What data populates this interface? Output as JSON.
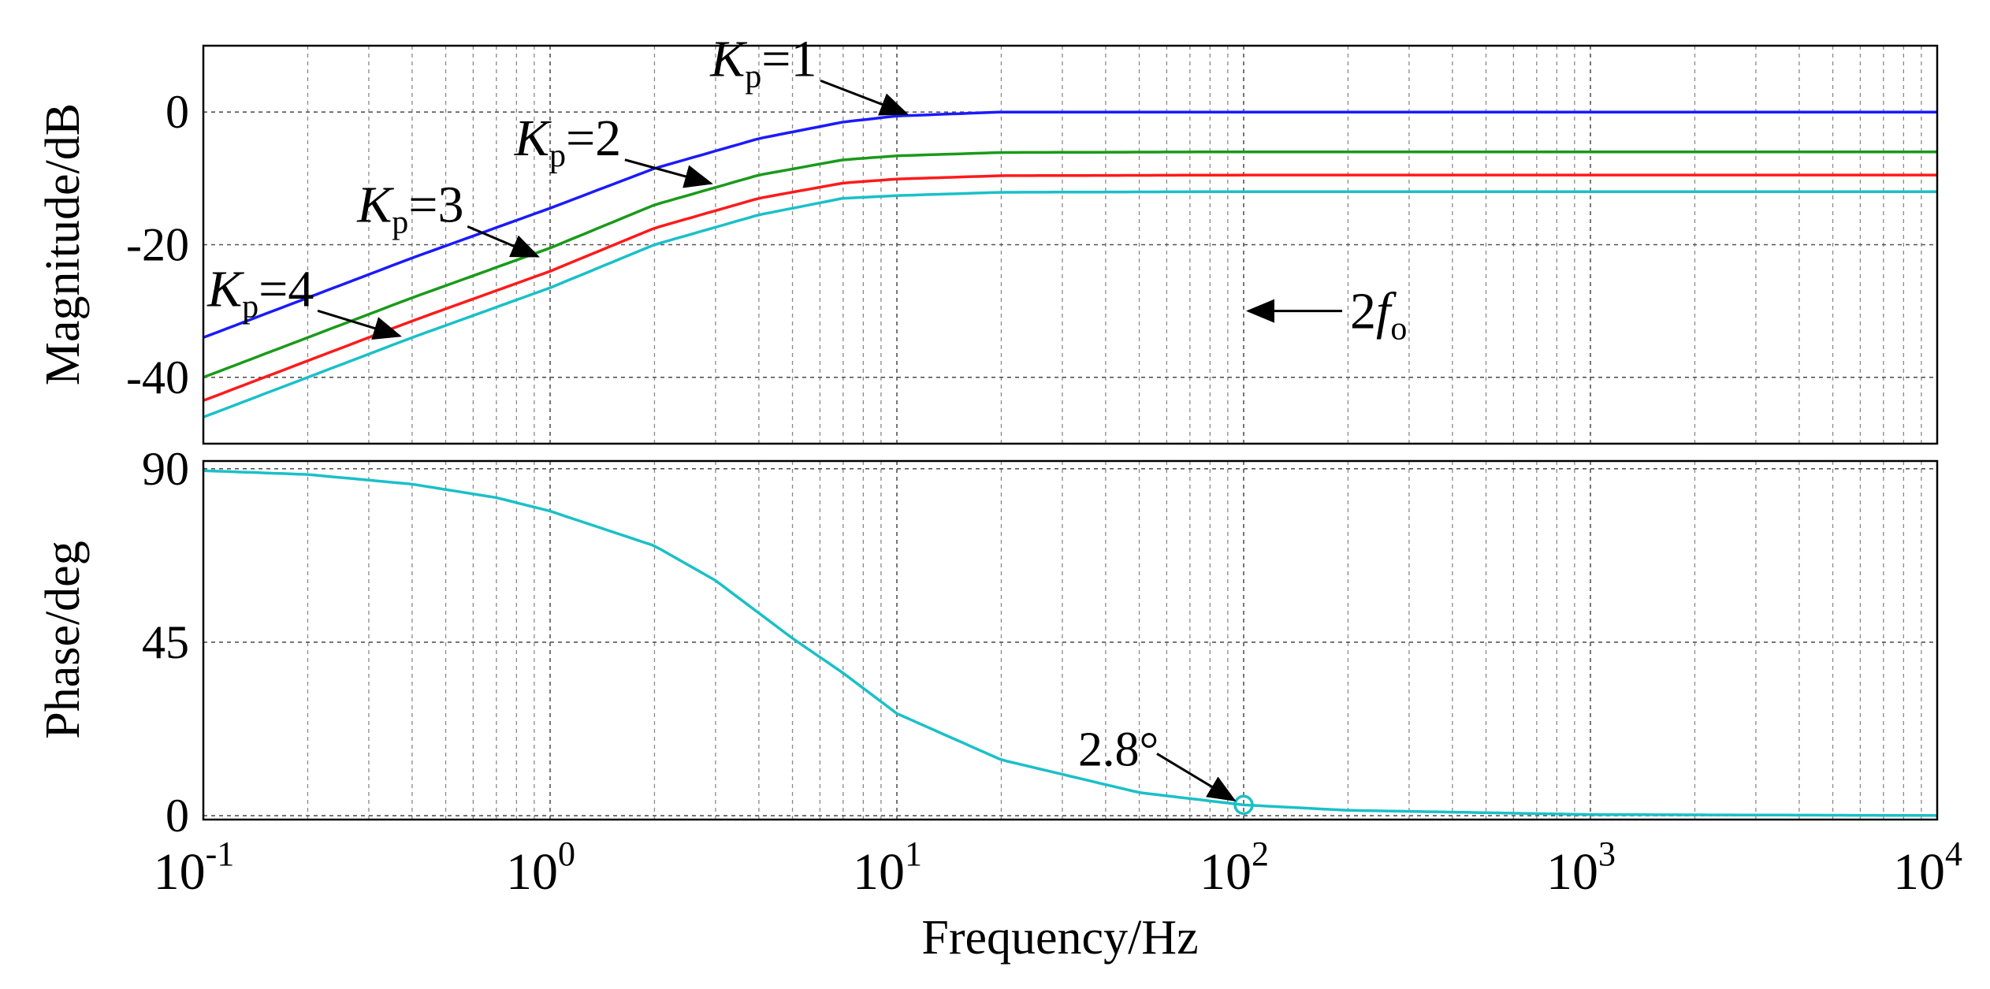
{
  "chart_data": {
    "type": "line",
    "xscale": "log",
    "xlabel": "Frequency/Hz",
    "xlim": [
      0.1,
      10000
    ],
    "xticks": [
      {
        "base": "10",
        "exp": "-1"
      },
      {
        "base": "10",
        "exp": "0"
      },
      {
        "base": "10",
        "exp": "1"
      },
      {
        "base": "10",
        "exp": "2"
      },
      {
        "base": "10",
        "exp": "3"
      },
      {
        "base": "10",
        "exp": "4"
      }
    ],
    "magnitude": {
      "ylabel": "Magnitude/dB",
      "ylim": [
        -50,
        10
      ],
      "yticks": [
        0,
        -20,
        -40
      ],
      "series": [
        {
          "name": "Kp=1",
          "color": "#1a1aff",
          "x": [
            0.1,
            0.2,
            0.4,
            1,
            2,
            4,
            7,
            10,
            20,
            100,
            1000,
            10000
          ],
          "values": [
            -34,
            -28,
            -22,
            -14.5,
            -8.5,
            -4,
            -1.5,
            -0.6,
            0,
            0,
            0,
            0
          ]
        },
        {
          "name": "Kp=2",
          "color": "#1a9a1a",
          "x": [
            0.1,
            0.2,
            0.4,
            1,
            2,
            4,
            7,
            10,
            20,
            100,
            1000,
            10000
          ],
          "values": [
            -40,
            -34,
            -28,
            -20.5,
            -14,
            -9.5,
            -7.2,
            -6.6,
            -6.1,
            -6,
            -6,
            -6
          ]
        },
        {
          "name": "Kp=3",
          "color": "#ff1a1a",
          "x": [
            0.1,
            0.2,
            0.4,
            1,
            2,
            4,
            7,
            10,
            20,
            100,
            1000,
            10000
          ],
          "values": [
            -43.5,
            -37.5,
            -31.5,
            -24,
            -17.5,
            -13,
            -10.7,
            -10.1,
            -9.6,
            -9.5,
            -9.5,
            -9.5
          ]
        },
        {
          "name": "Kp=4",
          "color": "#1ac0c8",
          "x": [
            0.1,
            0.2,
            0.4,
            1,
            2,
            4,
            7,
            10,
            20,
            100,
            1000,
            10000
          ],
          "values": [
            -46,
            -40,
            -34,
            -26.5,
            -20,
            -15.5,
            -13,
            -12.6,
            -12.1,
            -12,
            -12,
            -12
          ]
        }
      ],
      "annotations": [
        {
          "base": "K",
          "sub": "p",
          "rest": "=1",
          "anchor_x": 11,
          "anchor_y": -0.5
        },
        {
          "base": "K",
          "sub": "p",
          "rest": "=2",
          "anchor_x": 3,
          "anchor_y": -11
        },
        {
          "base": "K",
          "sub": "p",
          "rest": "=3",
          "anchor_x": 0.95,
          "anchor_y": -22
        },
        {
          "base": "K",
          "sub": "p",
          "rest": "=4",
          "anchor_x": 0.38,
          "anchor_y": -34
        },
        {
          "base": "2",
          "italic": "f",
          "sub": "o",
          "anchor_x": 100,
          "anchor_y": -30
        }
      ]
    },
    "phase": {
      "ylabel": "Phase/deg",
      "ylim": [
        -1,
        92
      ],
      "yticks": [
        90,
        45,
        0
      ],
      "series": [
        {
          "name": "Phase",
          "color": "#1ac0c8",
          "x": [
            0.1,
            0.2,
            0.4,
            0.7,
            1,
            2,
            3,
            5,
            7,
            10,
            20,
            50,
            100,
            200,
            1000,
            10000
          ],
          "values": [
            89.5,
            88.5,
            86,
            82.5,
            79,
            70,
            61,
            46,
            37,
            26.5,
            14.5,
            6,
            2.8,
            1.4,
            0.3,
            0.05
          ]
        }
      ],
      "marker": {
        "x": 100,
        "y": 2.8,
        "label": "2.8°"
      }
    }
  }
}
